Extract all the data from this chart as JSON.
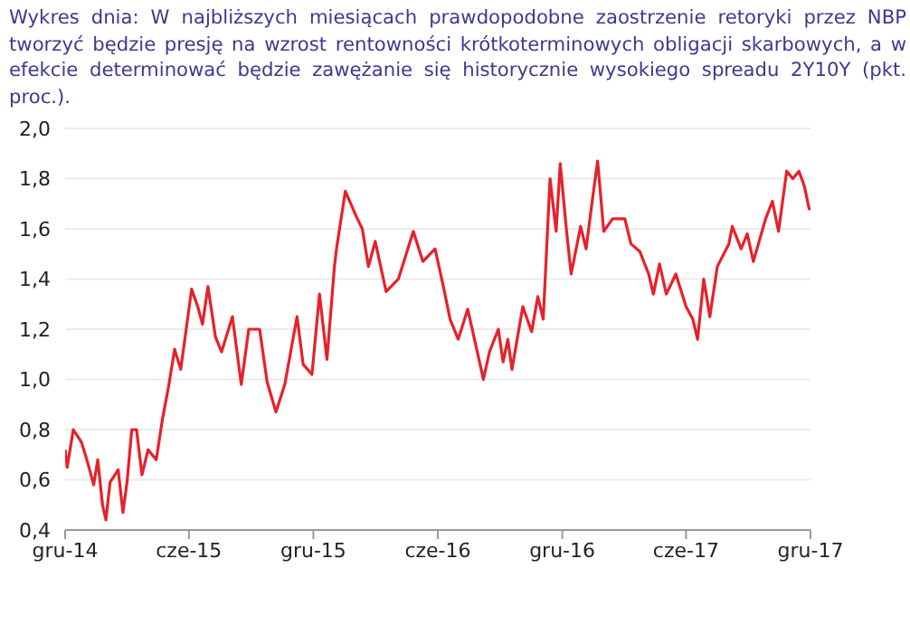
{
  "chart_data": {
    "type": "line",
    "title": "Wykres dnia: W najbliższych miesiącach prawdopodobne zaostrzenie retoryki przez NBP tworzyć będzie presję na wzrost rentowności krótkoterminowych obligacji skarbowych, a w efekcie determinować będzie zawężanie się historycznie wysokiego spreadu 2Y10Y (pkt. proc.).",
    "x": [
      "2014-12-01",
      "2014-12-04",
      "2014-12-13",
      "2014-12-25",
      "2015-01-03",
      "2015-01-12",
      "2015-01-18",
      "2015-01-25",
      "2015-01-30",
      "2015-02-05",
      "2015-02-17",
      "2015-02-24",
      "2015-03-02",
      "2015-03-09",
      "2015-03-16",
      "2015-03-24",
      "2015-04-02",
      "2015-04-14",
      "2015-04-23",
      "2015-05-02",
      "2015-05-11",
      "2015-05-20",
      "2015-05-26",
      "2015-06-05",
      "2015-06-14",
      "2015-06-21",
      "2015-06-29",
      "2015-07-10",
      "2015-07-19",
      "2015-08-04",
      "2015-08-17",
      "2015-08-28",
      "2015-09-13",
      "2015-09-24",
      "2015-10-07",
      "2015-10-20",
      "2015-11-07",
      "2015-11-16",
      "2015-11-29",
      "2015-12-10",
      "2015-12-21",
      "2016-01-01",
      "2016-01-04",
      "2016-01-17",
      "2016-02-02",
      "2016-02-11",
      "2016-02-20",
      "2016-03-01",
      "2016-03-17",
      "2016-04-04",
      "2016-04-26",
      "2016-05-10",
      "2016-05-28",
      "2016-06-10",
      "2016-06-19",
      "2016-07-01",
      "2016-07-15",
      "2016-08-03",
      "2016-08-07",
      "2016-08-16",
      "2016-08-29",
      "2016-09-05",
      "2016-09-12",
      "2016-09-18",
      "2016-10-04",
      "2016-10-17",
      "2016-10-26",
      "2016-11-03",
      "2016-11-13",
      "2016-11-22",
      "2016-11-28",
      "2016-12-07",
      "2016-12-14",
      "2016-12-28",
      "2017-01-05",
      "2017-01-14",
      "2017-01-22",
      "2017-01-31",
      "2017-02-13",
      "2017-03-03",
      "2017-03-12",
      "2017-03-25",
      "2017-04-07",
      "2017-04-14",
      "2017-04-23",
      "2017-05-03",
      "2017-05-17",
      "2017-06-01",
      "2017-06-11",
      "2017-06-18",
      "2017-06-27",
      "2017-07-06",
      "2017-07-17",
      "2017-08-03",
      "2017-08-08",
      "2017-08-21",
      "2017-08-30",
      "2017-09-08",
      "2017-09-26",
      "2017-10-06",
      "2017-10-15",
      "2017-10-27",
      "2017-11-05",
      "2017-11-14",
      "2017-11-22",
      "2017-11-29",
      "2017-12-01"
    ],
    "series": [
      {
        "color": "#e8202a",
        "values": [
          0.72,
          0.65,
          0.8,
          0.75,
          0.67,
          0.58,
          0.68,
          0.5,
          0.44,
          0.59,
          0.64,
          0.47,
          0.59,
          0.8,
          0.8,
          0.62,
          0.72,
          0.68,
          0.84,
          0.97,
          1.12,
          1.04,
          1.16,
          1.36,
          1.29,
          1.22,
          1.37,
          1.17,
          1.11,
          1.25,
          0.98,
          1.2,
          1.2,
          0.99,
          0.87,
          0.98,
          1.25,
          1.06,
          1.02,
          1.34,
          1.08,
          1.45,
          1.52,
          1.75,
          1.65,
          1.6,
          1.45,
          1.55,
          1.35,
          1.4,
          1.59,
          1.47,
          1.52,
          1.36,
          1.24,
          1.16,
          1.28,
          1.05,
          1.0,
          1.11,
          1.2,
          1.07,
          1.16,
          1.04,
          1.29,
          1.19,
          1.33,
          1.24,
          1.8,
          1.59,
          1.86,
          1.6,
          1.42,
          1.61,
          1.52,
          1.71,
          1.87,
          1.59,
          1.64,
          1.64,
          1.54,
          1.51,
          1.42,
          1.34,
          1.46,
          1.34,
          1.42,
          1.29,
          1.24,
          1.16,
          1.4,
          1.25,
          1.45,
          1.54,
          1.61,
          1.52,
          1.58,
          1.47,
          1.64,
          1.71,
          1.59,
          1.83,
          1.8,
          1.83,
          1.77,
          1.68,
          1.68
        ]
      }
    ],
    "xlim": [
      "2014-12-01",
      "2017-12-01"
    ],
    "xticks": [
      {
        "value": "2014-12-01",
        "label": "gru-14"
      },
      {
        "value": "2015-06-01",
        "label": "cze-15"
      },
      {
        "value": "2015-12-01",
        "label": "gru-15"
      },
      {
        "value": "2016-06-01",
        "label": "cze-16"
      },
      {
        "value": "2016-12-01",
        "label": "gru-16"
      },
      {
        "value": "2017-06-01",
        "label": "cze-17"
      },
      {
        "value": "2017-12-01",
        "label": "gru-17"
      }
    ],
    "ylim": [
      0.4,
      2.0
    ],
    "yticks": [
      {
        "value": 0.4,
        "label": "0,4"
      },
      {
        "value": 0.6,
        "label": "0,6"
      },
      {
        "value": 0.8,
        "label": "0,8"
      },
      {
        "value": 1.0,
        "label": "1,0"
      },
      {
        "value": 1.2,
        "label": "1,2"
      },
      {
        "value": 1.4,
        "label": "1,4"
      },
      {
        "value": 1.6,
        "label": "1,6"
      },
      {
        "value": 1.8,
        "label": "1,8"
      },
      {
        "value": 2.0,
        "label": "2,0"
      }
    ],
    "grid": "y",
    "legend": false,
    "marker": "none",
    "line_style": "solid"
  }
}
